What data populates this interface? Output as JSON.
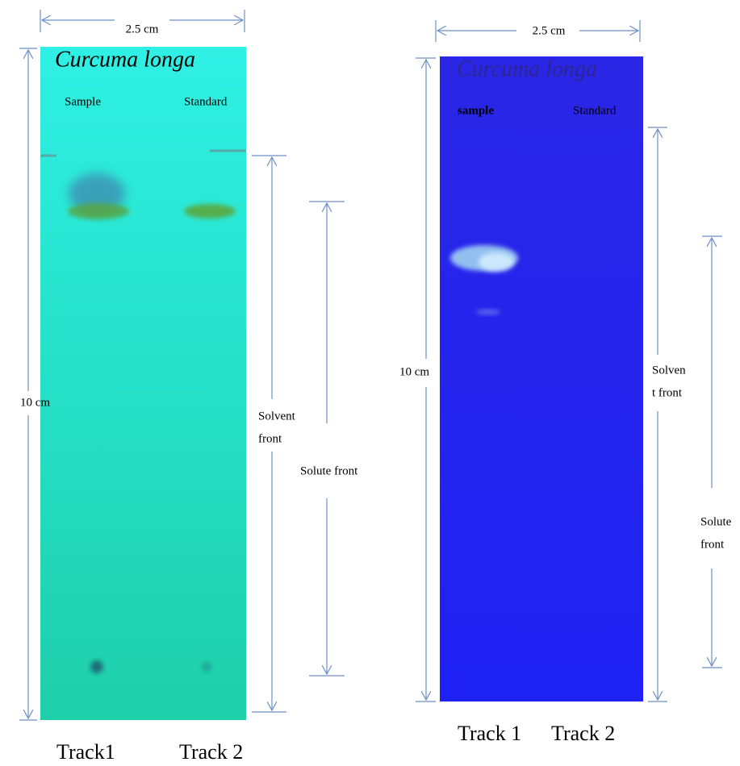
{
  "panels": [
    {
      "width_label": "2.5 cm",
      "title": "Curcuma longa",
      "lanes": [
        "Sample",
        "Standard"
      ],
      "height_label": "10 cm",
      "solvent_front": [
        "Solvent",
        "front"
      ],
      "solute_front": [
        "Solute front"
      ],
      "tracks": [
        "Track1",
        "Track 2"
      ]
    },
    {
      "width_label": "2.5 cm",
      "title": "Curcuma longa",
      "lanes": [
        "sample",
        "Standard"
      ],
      "height_label": "10 cm",
      "solvent_front": [
        "Solven",
        "t front"
      ],
      "solute_front": [
        "Solute",
        "front"
      ],
      "tracks": [
        "Track 1",
        "Track 2"
      ]
    }
  ]
}
